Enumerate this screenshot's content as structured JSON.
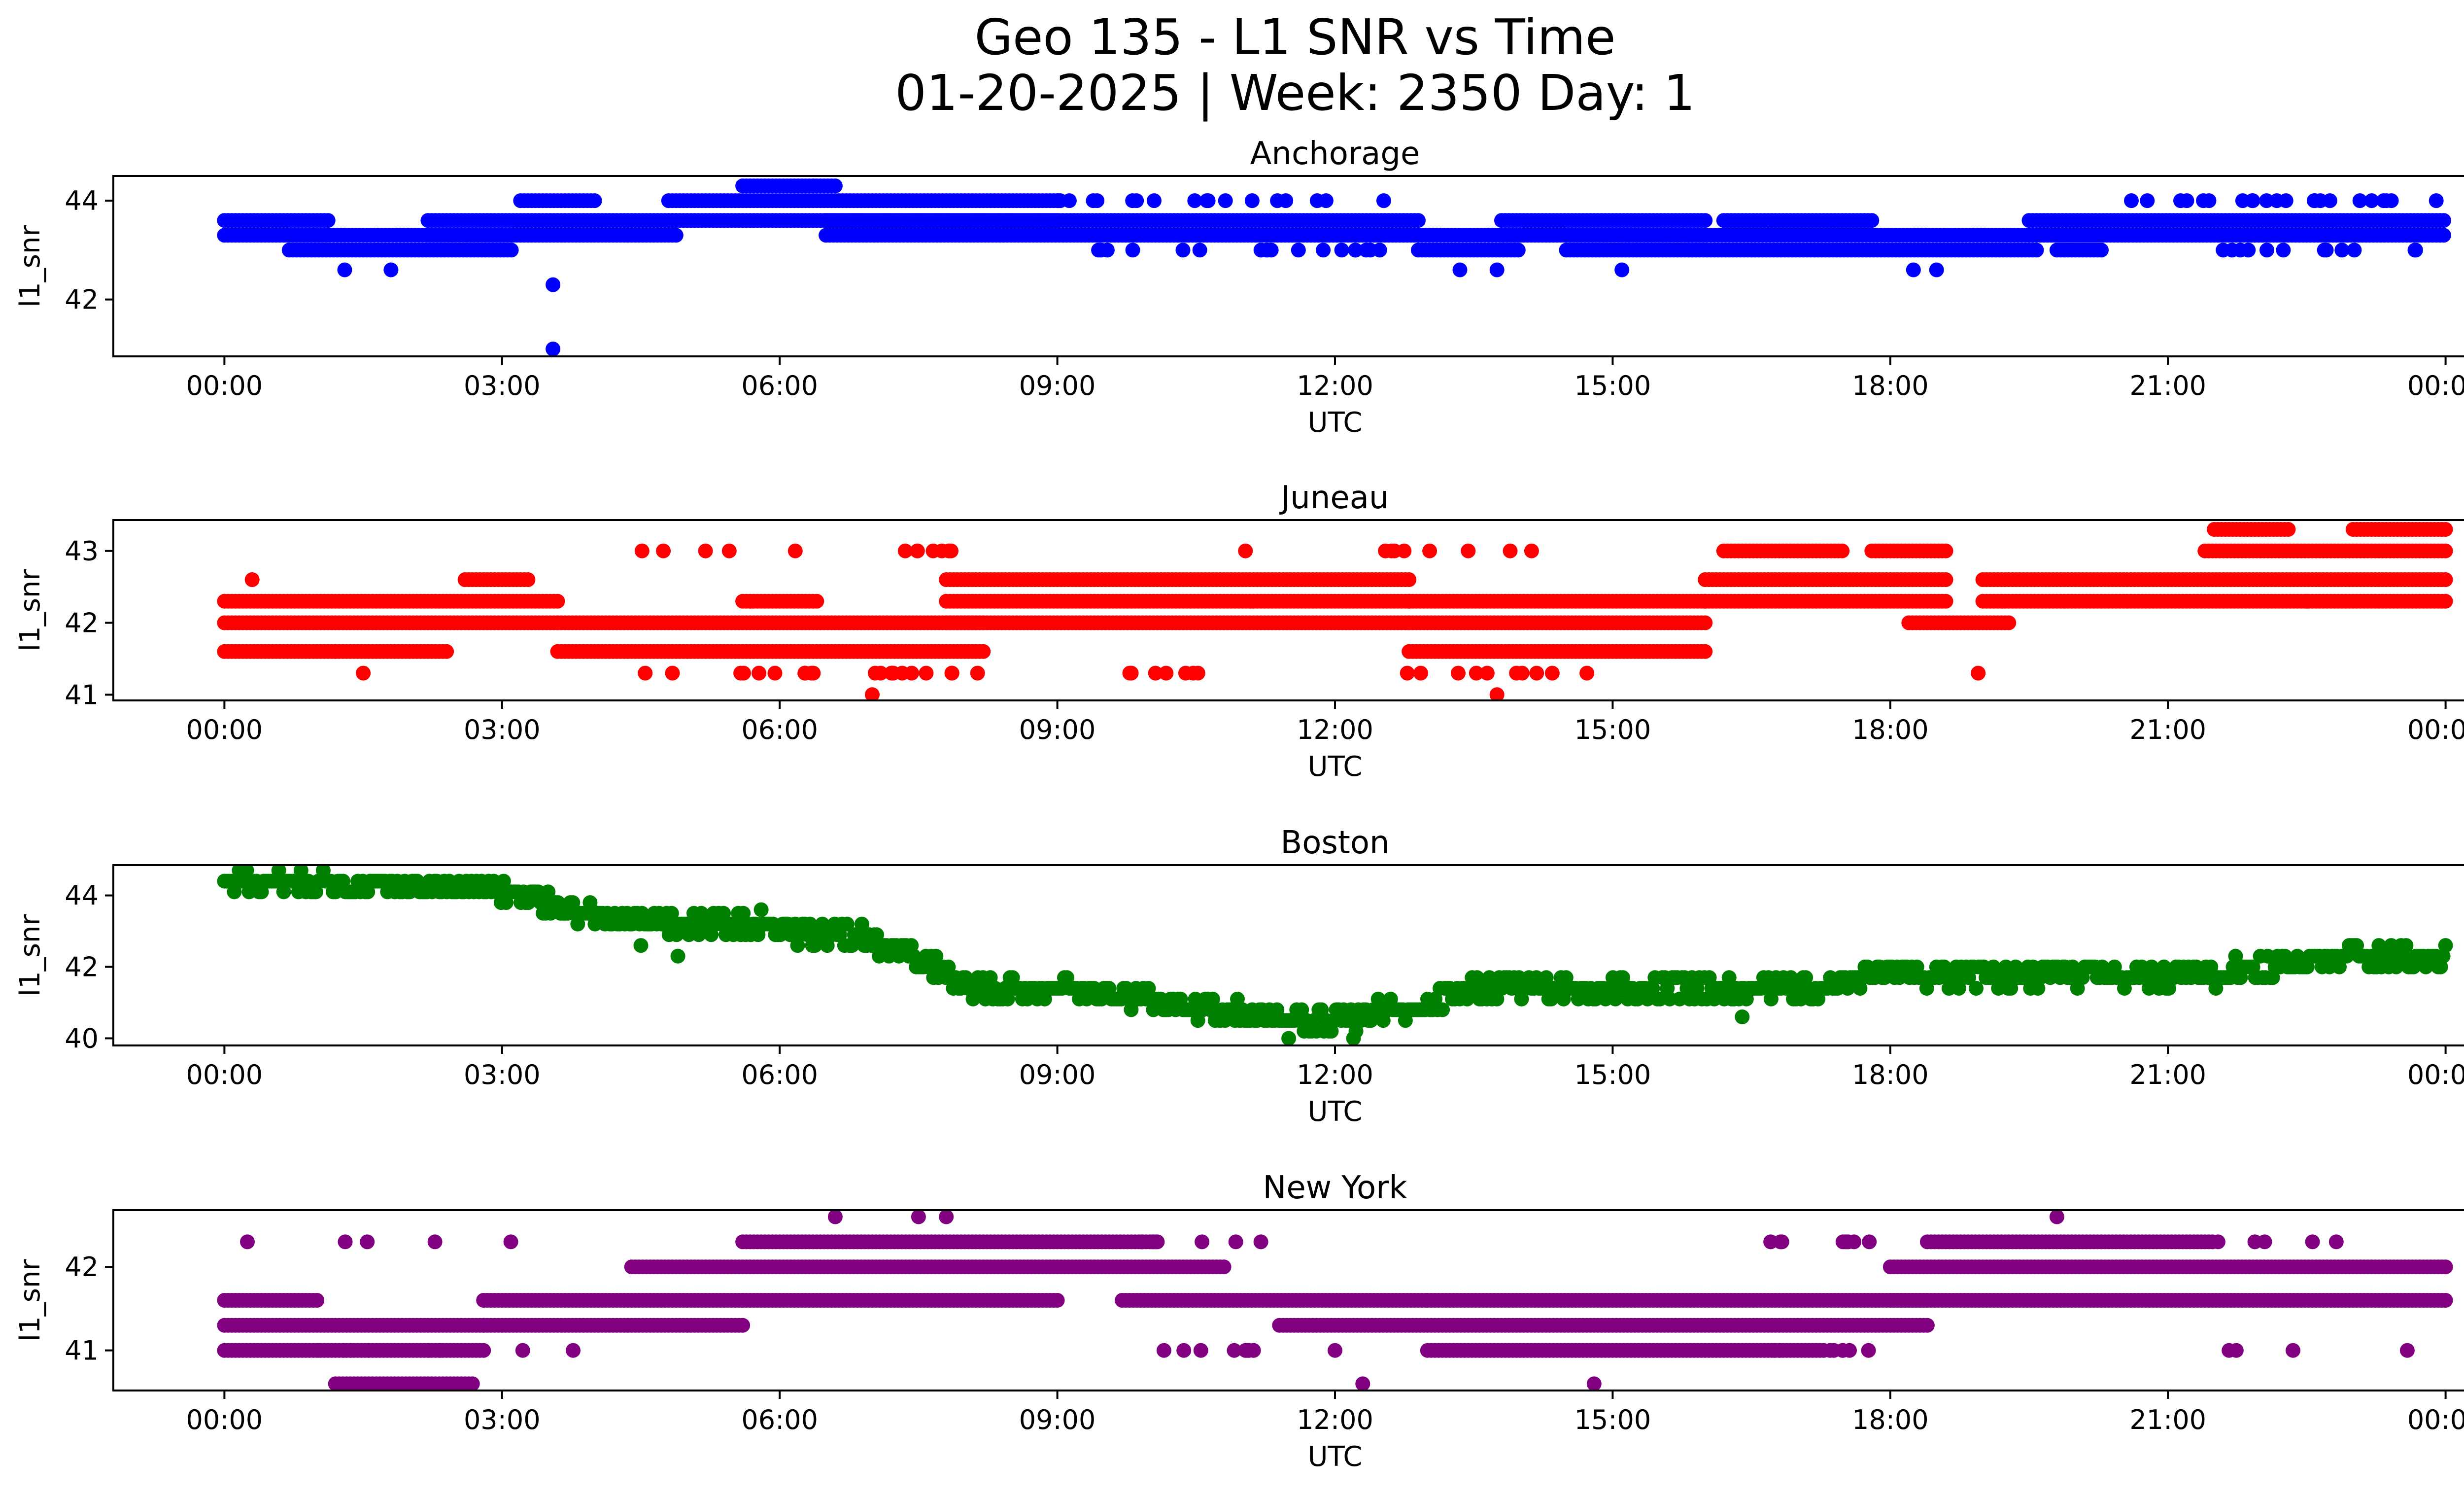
{
  "figure": {
    "title_line1": "Geo 135 - L1 SNR vs Time",
    "title_line2": "01-20-2025 | Week: 2350 Day: 1"
  },
  "chart_data": [
    {
      "type": "scatter",
      "title": "Anchorage",
      "xlabel": "UTC",
      "ylabel": "l1_snr",
      "color": "#0000ff",
      "x_ticks": [
        "00:00",
        "03:00",
        "06:00",
        "09:00",
        "12:00",
        "15:00",
        "18:00",
        "21:00",
        "00:00"
      ],
      "x_tick_hours": [
        0,
        3,
        6,
        9,
        12,
        15,
        18,
        21,
        24
      ],
      "xlim_hours": [
        -1.2,
        25.2
      ],
      "y_ticks": [
        42,
        44
      ],
      "ylim": [
        40.85,
        44.5
      ],
      "band_levels": [
        43.0,
        43.3,
        43.6,
        44.0,
        44.3
      ],
      "outliers": [
        [
          3.55,
          42.3
        ],
        [
          3.55,
          41.0
        ],
        [
          1.3,
          42.6
        ],
        [
          1.8,
          42.6
        ],
        [
          13.35,
          42.6
        ],
        [
          13.75,
          42.6
        ],
        [
          15.1,
          42.6
        ],
        [
          18.25,
          42.6
        ],
        [
          18.5,
          42.6
        ]
      ],
      "segments": [
        {
          "from": 0.0,
          "to": 1.15,
          "levels": [
            43.3,
            43.6
          ]
        },
        {
          "from": 0.7,
          "to": 3.1,
          "levels": [
            43.0,
            43.3
          ]
        },
        {
          "from": 2.2,
          "to": 4.9,
          "levels": [
            43.3,
            43.6
          ]
        },
        {
          "from": 3.2,
          "to": 4.0,
          "levels": [
            44.0
          ]
        },
        {
          "from": 4.8,
          "to": 9.0,
          "levels": [
            43.6,
            44.0
          ]
        },
        {
          "from": 5.6,
          "to": 6.6,
          "levels": [
            44.3
          ]
        },
        {
          "from": 6.5,
          "to": 12.9,
          "levels": [
            43.3,
            43.6
          ]
        },
        {
          "from": 12.9,
          "to": 14.0,
          "levels": [
            43.0,
            43.3
          ]
        },
        {
          "from": 13.8,
          "to": 16.0,
          "levels": [
            43.3,
            43.6
          ]
        },
        {
          "from": 14.5,
          "to": 19.6,
          "levels": [
            43.0,
            43.3
          ]
        },
        {
          "from": 16.2,
          "to": 17.8,
          "levels": [
            43.6
          ]
        },
        {
          "from": 19.5,
          "to": 24.0,
          "levels": [
            43.3,
            43.6
          ]
        },
        {
          "from": 19.8,
          "to": 20.3,
          "levels": [
            43.0
          ]
        }
      ],
      "scattered": {
        "count": 70,
        "levels": [
          43.0,
          44.0
        ],
        "ranges": [
          [
            8.9,
            12.6
          ],
          [
            20.5,
            23.9
          ]
        ]
      }
    },
    {
      "type": "scatter",
      "title": "Juneau",
      "xlabel": "UTC",
      "ylabel": "l1_snr",
      "color": "#ff0000",
      "x_ticks": [
        "00:00",
        "03:00",
        "06:00",
        "09:00",
        "12:00",
        "15:00",
        "18:00",
        "21:00",
        "00:00"
      ],
      "x_tick_hours": [
        0,
        3,
        6,
        9,
        12,
        15,
        18,
        21,
        24
      ],
      "xlim_hours": [
        -1.2,
        25.2
      ],
      "y_ticks": [
        41,
        42,
        43
      ],
      "ylim": [
        40.92,
        43.43
      ],
      "band_levels": [
        41.3,
        41.6,
        42.0,
        42.3,
        42.6,
        43.0,
        43.3
      ],
      "outliers": [
        [
          7.0,
          41.0
        ],
        [
          13.75,
          41.0
        ],
        [
          1.5,
          41.3
        ],
        [
          18.95,
          41.3
        ],
        [
          0.3,
          42.6
        ],
        [
          22.5,
          42.3
        ]
      ],
      "segments": [
        {
          "from": 0.0,
          "to": 3.6,
          "levels": [
            42.0,
            42.3
          ]
        },
        {
          "from": 0.0,
          "to": 1.2,
          "levels": [
            41.6
          ]
        },
        {
          "from": 1.2,
          "to": 2.4,
          "levels": [
            41.6
          ]
        },
        {
          "from": 2.6,
          "to": 3.3,
          "levels": [
            42.6
          ]
        },
        {
          "from": 3.6,
          "to": 8.2,
          "levels": [
            41.6,
            42.0
          ]
        },
        {
          "from": 5.6,
          "to": 6.4,
          "levels": [
            42.3
          ]
        },
        {
          "from": 7.8,
          "to": 12.8,
          "levels": [
            42.0,
            42.3,
            42.6
          ]
        },
        {
          "from": 12.8,
          "to": 16.0,
          "levels": [
            41.6,
            42.0,
            42.3
          ]
        },
        {
          "from": 16.0,
          "to": 18.6,
          "levels": [
            42.3,
            42.6
          ]
        },
        {
          "from": 16.2,
          "to": 17.5,
          "levels": [
            43.0
          ]
        },
        {
          "from": 17.8,
          "to": 18.6,
          "levels": [
            43.0
          ]
        },
        {
          "from": 18.2,
          "to": 19.3,
          "levels": [
            42.0
          ]
        },
        {
          "from": 19.0,
          "to": 24.0,
          "levels": [
            42.3,
            42.6
          ]
        },
        {
          "from": 21.4,
          "to": 24.0,
          "levels": [
            43.0
          ]
        },
        {
          "from": 21.5,
          "to": 22.3,
          "levels": [
            43.3
          ]
        },
        {
          "from": 23.0,
          "to": 24.0,
          "levels": [
            43.3
          ]
        }
      ],
      "scattered": {
        "count": 60,
        "levels": [
          41.3,
          43.0
        ],
        "ranges": [
          [
            4.5,
            6.5
          ],
          [
            7.0,
            8.2
          ],
          [
            9.4,
            11.4
          ],
          [
            12.0,
            15.0
          ]
        ]
      }
    },
    {
      "type": "scatter",
      "title": "Boston",
      "xlabel": "UTC",
      "ylabel": "l1_snr",
      "color": "#008000",
      "x_ticks": [
        "00:00",
        "03:00",
        "06:00",
        "09:00",
        "12:00",
        "15:00",
        "18:00",
        "21:00",
        "00:00"
      ],
      "x_tick_hours": [
        0,
        3,
        6,
        9,
        12,
        15,
        18,
        21,
        24
      ],
      "xlim_hours": [
        -1.2,
        25.2
      ],
      "y_ticks": [
        40,
        42,
        44
      ],
      "ylim": [
        39.8,
        44.85
      ],
      "trend": [
        [
          0,
          44.3
        ],
        [
          2.8,
          44.2
        ],
        [
          3.5,
          43.8
        ],
        [
          4.2,
          43.3
        ],
        [
          5.5,
          43.1
        ],
        [
          6.8,
          42.9
        ],
        [
          7.6,
          42.2
        ],
        [
          8.0,
          41.4
        ],
        [
          9.5,
          41.3
        ],
        [
          10.5,
          40.9
        ],
        [
          11.5,
          40.4
        ],
        [
          12.3,
          40.6
        ],
        [
          13.0,
          41.0
        ],
        [
          13.5,
          41.4
        ],
        [
          15.0,
          41.4
        ],
        [
          16.5,
          41.3
        ],
        [
          17.4,
          41.5
        ],
        [
          18.0,
          41.8
        ],
        [
          20.0,
          41.8
        ],
        [
          21.5,
          41.8
        ],
        [
          22.2,
          42.1
        ],
        [
          23.0,
          42.3
        ],
        [
          24.0,
          42.3
        ]
      ],
      "spread": 0.6,
      "point_count": 900,
      "outliers": [
        [
          4.5,
          42.6
        ],
        [
          4.9,
          42.3
        ],
        [
          5.8,
          43.6
        ],
        [
          16.4,
          40.6
        ],
        [
          11.5,
          40.0
        ],
        [
          12.2,
          40.0
        ]
      ]
    },
    {
      "type": "scatter",
      "title": "New York",
      "xlabel": "UTC",
      "ylabel": "l1_snr",
      "color": "#800080",
      "x_ticks": [
        "00:00",
        "03:00",
        "06:00",
        "09:00",
        "12:00",
        "15:00",
        "18:00",
        "21:00",
        "00:00"
      ],
      "x_tick_hours": [
        0,
        3,
        6,
        9,
        12,
        15,
        18,
        21,
        24
      ],
      "xlim_hours": [
        -1.2,
        25.2
      ],
      "y_ticks": [
        41,
        42
      ],
      "ylim": [
        40.52,
        42.68
      ],
      "band_levels": [
        40.6,
        41.0,
        41.3,
        41.6,
        42.0,
        42.3,
        42.6
      ],
      "outliers": [
        [
          6.6,
          42.6
        ],
        [
          7.5,
          42.6
        ],
        [
          7.8,
          42.6
        ],
        [
          19.8,
          42.6
        ],
        [
          12.3,
          40.6
        ],
        [
          14.8,
          40.6
        ],
        [
          12.0,
          41.0
        ]
      ],
      "segments": [
        {
          "from": 0.0,
          "to": 2.8,
          "levels": [
            41.0,
            41.3
          ]
        },
        {
          "from": 1.2,
          "to": 2.7,
          "levels": [
            40.6
          ]
        },
        {
          "from": 0.0,
          "to": 1.0,
          "levels": [
            41.6
          ]
        },
        {
          "from": 2.8,
          "to": 5.6,
          "levels": [
            41.3,
            41.6
          ]
        },
        {
          "from": 4.4,
          "to": 10.8,
          "levels": [
            42.0
          ]
        },
        {
          "from": 5.6,
          "to": 10.1,
          "levels": [
            42.3
          ]
        },
        {
          "from": 5.6,
          "to": 9.0,
          "levels": [
            41.6
          ]
        },
        {
          "from": 9.7,
          "to": 13.0,
          "levels": [
            41.6
          ]
        },
        {
          "from": 11.4,
          "to": 18.4,
          "levels": [
            41.3
          ]
        },
        {
          "from": 13.0,
          "to": 17.3,
          "levels": [
            41.0
          ]
        },
        {
          "from": 13.0,
          "to": 18.4,
          "levels": [
            41.6
          ]
        },
        {
          "from": 18.0,
          "to": 24.0,
          "levels": [
            41.6,
            42.0
          ]
        },
        {
          "from": 18.4,
          "to": 21.5,
          "levels": [
            42.3
          ]
        }
      ],
      "scattered": {
        "count": 55,
        "levels": [
          41.0,
          42.3
        ],
        "ranges": [
          [
            0.2,
            4.2
          ],
          [
            9.8,
            11.2
          ],
          [
            21.3,
            23.8
          ],
          [
            16.5,
            17.8
          ]
        ]
      }
    }
  ]
}
